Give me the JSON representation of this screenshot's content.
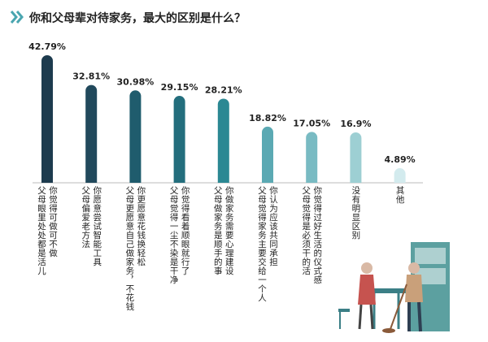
{
  "chart_data": {
    "type": "bar",
    "title": "你和父母辈对待家务，最大的区别是什么？",
    "categories": [
      [
        "你觉得可做可不做",
        "父母眼里处处都是活儿"
      ],
      [
        "你愿意尝试智能工具",
        "父母偏爱老方法"
      ],
      [
        "你更愿意花钱换轻松",
        "父母更愿意自己做家务，不花钱"
      ],
      [
        "你觉得看着顺眼就行了",
        "父母觉得一尘不染是干净"
      ],
      [
        "你做家务需要心理建设",
        "父母做家务是顺手的事"
      ],
      [
        "你认为应该共同承担",
        "父母觉得家务主要交给一个人"
      ],
      [
        "你觉得过好生活的仪式感",
        "父母觉得是必须干的活"
      ],
      [
        "没有明显区别"
      ],
      [
        "其他"
      ]
    ],
    "values": [
      42.79,
      32.81,
      30.98,
      29.15,
      28.21,
      18.82,
      17.05,
      16.9,
      4.89
    ],
    "value_labels": [
      "42.79%",
      "32.81%",
      "30.98%",
      "29.15%",
      "28.21%",
      "18.82%",
      "17.05%",
      "16.9%",
      "4.89%"
    ],
    "colors": [
      "#1d3b4e",
      "#21495c",
      "#1f5c6d",
      "#236e7d",
      "#2b8893",
      "#5ba9b3",
      "#79bbc3",
      "#9dcfd3",
      "#d3ebee"
    ]
  }
}
